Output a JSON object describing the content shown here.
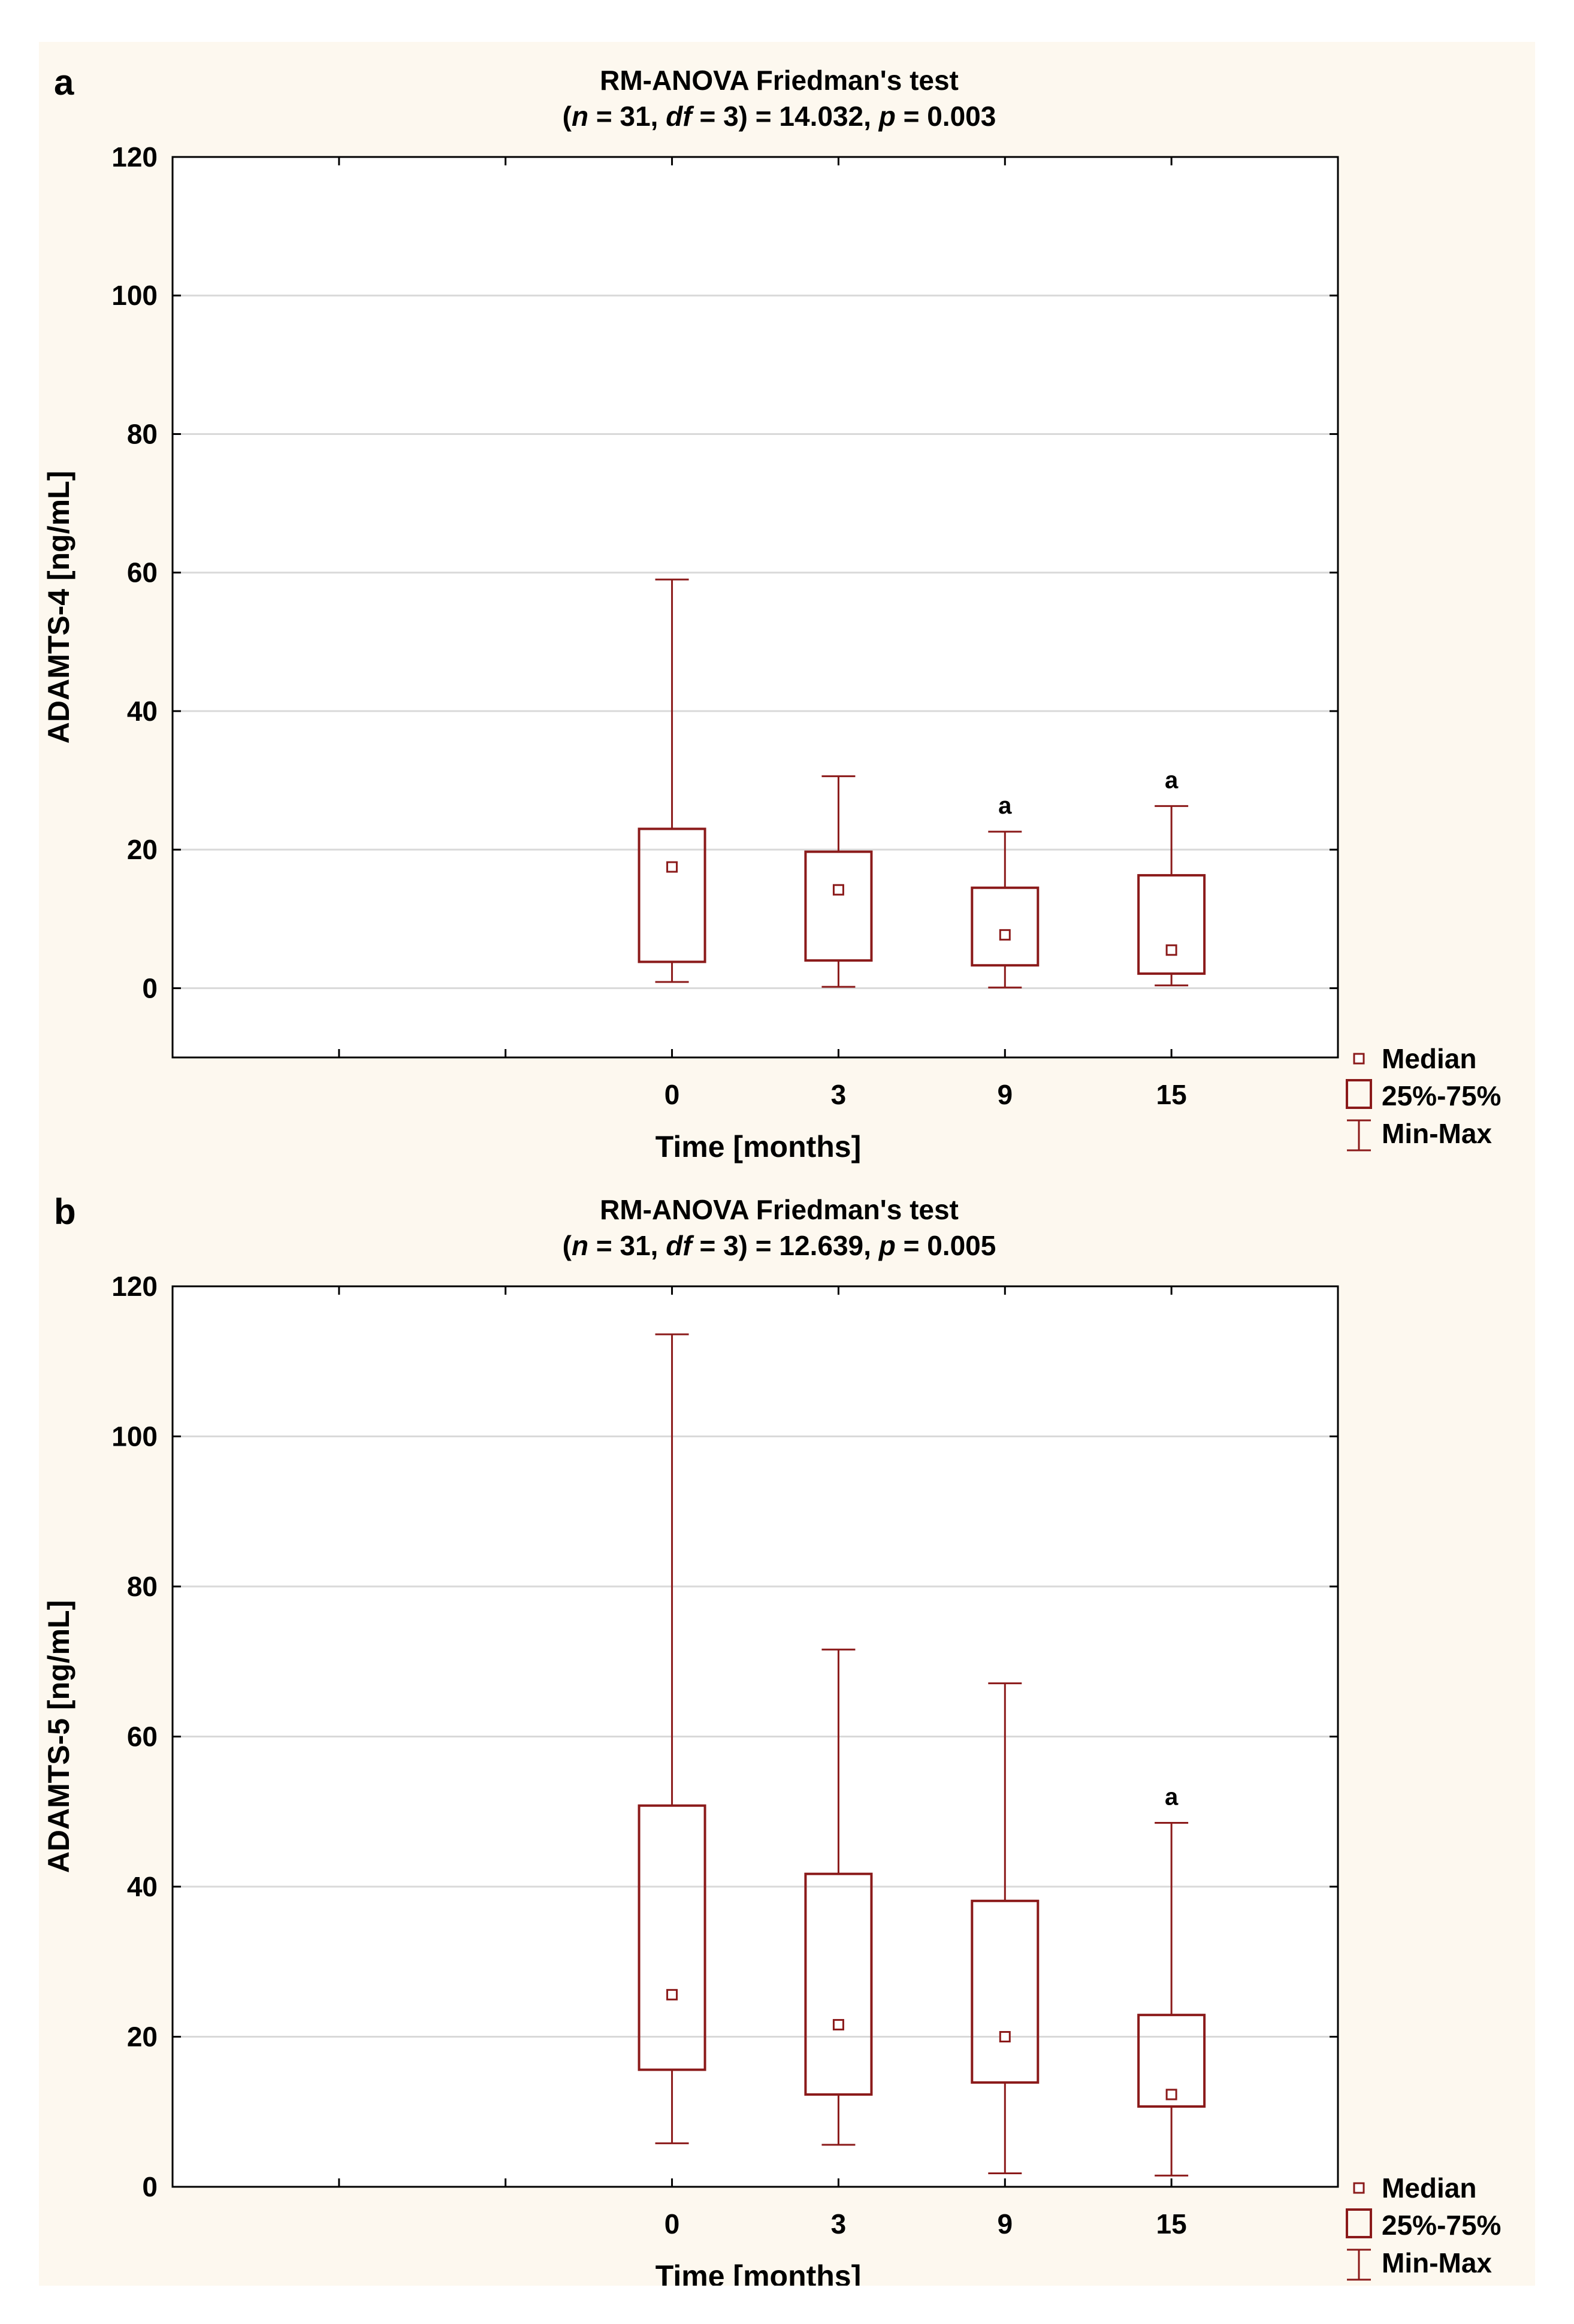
{
  "colors": {
    "background": "#fdf8ef",
    "plot_bg": "#ffffff",
    "box": "#8b1a1a",
    "grid": "#d9d9d9",
    "axis": "#000000"
  },
  "chart_data": [
    {
      "type": "boxplot",
      "panel_label": "a",
      "title_line1": "RM-ANOVA Friedman's test",
      "title_line2": {
        "open": "(",
        "n_label": "n",
        "n_text": " = 31, ",
        "df_label": "df",
        "df_text": " = 3) = 14.032, ",
        "p_label": "p",
        "p_text": " = 0.003"
      },
      "xlabel": "Time [months]",
      "ylabel": "ADAMTS-4 [ng/mL]",
      "ylim": [
        -10,
        120
      ],
      "yticks": [
        0,
        20,
        40,
        60,
        80,
        100,
        120
      ],
      "grid": true,
      "categories": [
        "0",
        "3",
        "9",
        "15"
      ],
      "median": [
        17.5,
        14.2,
        7.7,
        5.5
      ],
      "q1": [
        3.8,
        4.0,
        3.3,
        2.1
      ],
      "q3": [
        23.0,
        19.7,
        14.5,
        16.3
      ],
      "min": [
        0.9,
        0.2,
        0.1,
        0.4
      ],
      "max": [
        59.0,
        30.6,
        22.6,
        26.3
      ],
      "annotations": [
        "",
        "",
        "a",
        "a"
      ],
      "legend": [
        "Median",
        "25%-75%",
        "Min-Max"
      ],
      "legend_position": "bottom-right"
    },
    {
      "type": "boxplot",
      "panel_label": "b",
      "title_line1": "RM-ANOVA Friedman's test",
      "title_line2": {
        "open": "(",
        "n_label": "n",
        "n_text": " = 31, ",
        "df_label": "df",
        "df_text": " = 3) = 12.639, ",
        "p_label": "p",
        "p_text": " = 0.005"
      },
      "xlabel": "Time [months]",
      "ylabel": "ADAMTS-5 [ng/mL]",
      "ylim": [
        0,
        120
      ],
      "yticks": [
        0,
        20,
        40,
        60,
        80,
        100,
        120
      ],
      "grid": true,
      "categories": [
        "0",
        "3",
        "9",
        "15"
      ],
      "median": [
        25.6,
        21.6,
        20.0,
        12.3
      ],
      "q1": [
        15.6,
        12.3,
        13.9,
        10.7
      ],
      "q3": [
        50.8,
        41.7,
        38.1,
        22.9
      ],
      "min": [
        5.8,
        5.6,
        1.8,
        1.5
      ],
      "max": [
        113.6,
        71.6,
        67.1,
        48.5
      ],
      "annotations": [
        "",
        "",
        "",
        "a"
      ],
      "legend": [
        "Median",
        "25%-75%",
        "Min-Max"
      ],
      "legend_position": "bottom-right"
    }
  ]
}
